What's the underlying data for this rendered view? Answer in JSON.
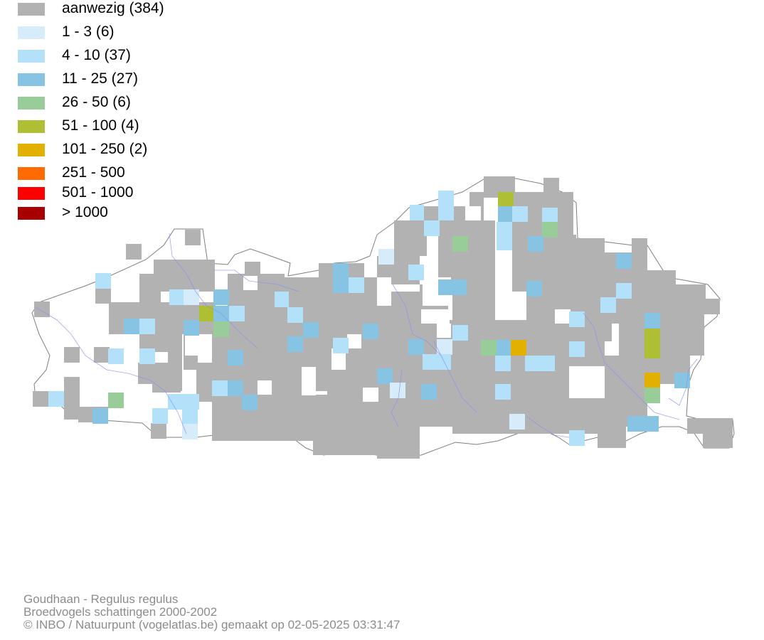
{
  "legend": [
    {
      "label": "aanwezig (384)",
      "color": "#b2b2b2"
    },
    {
      "label": "1 - 3 (6)",
      "color": "#d6ecfa"
    },
    {
      "label": "4 - 10 (37)",
      "color": "#b3e1fa"
    },
    {
      "label": "11 - 25 (27)",
      "color": "#87c4e3"
    },
    {
      "label": "26 - 50 (6)",
      "color": "#98cc98"
    },
    {
      "label": "51 - 100 (4)",
      "color": "#aebf33"
    },
    {
      "label": "101 - 250 (2)",
      "color": "#e1b000"
    },
    {
      "label": "251 - 500",
      "color": "#ff6b00"
    },
    {
      "label": "501 - 1000",
      "color": "#ff0000"
    },
    {
      "label": "> 1000",
      "color": "#a80000"
    }
  ],
  "credits": {
    "species": "Goudhaan - Regulus regulus",
    "dataset": "Broedvogels schattingen 2000-2002",
    "copyright": "© INBO / Natuurpunt (vogelatlas.be) gemaakt op 02-05-2025 03:31:47"
  }
}
